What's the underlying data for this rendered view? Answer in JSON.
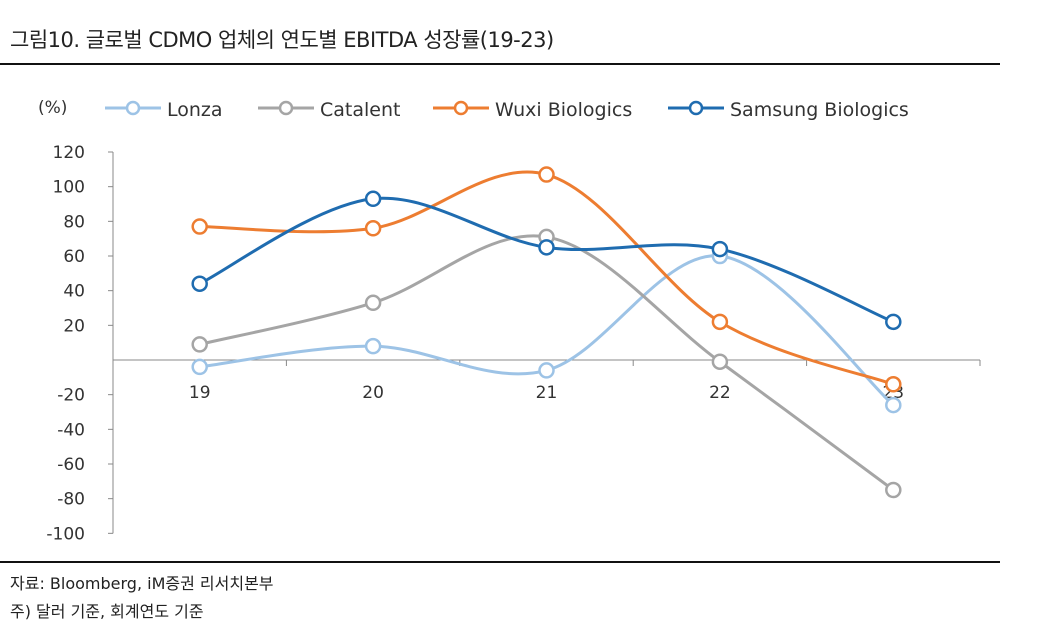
{
  "title": "그림10. 글로벌 CDMO 업체의 연도별 EBITDA 성장률(19-23)",
  "notes": [
    "자료: Bloomberg, iM증권 리서치본부",
    "주) 달러 기준, 회계연도 기준"
  ],
  "chart_data": {
    "type": "line",
    "title": "",
    "ylabel": "(%)",
    "xlabel": "",
    "categories": [
      "19",
      "20",
      "21",
      "22",
      "23"
    ],
    "ylim": [
      -100,
      120
    ],
    "yticks": [
      120,
      100,
      80,
      60,
      40,
      20,
      "",
      -20,
      -40,
      -60,
      -80,
      -100
    ],
    "grid": false,
    "legend": "top",
    "smooth": true,
    "series": [
      {
        "name": "Lonza",
        "color": "#9DC3E6",
        "values": [
          -4,
          8,
          -6,
          60,
          -26
        ]
      },
      {
        "name": "Catalent",
        "color": "#A5A5A5",
        "values": [
          9,
          33,
          71,
          -1,
          -75
        ]
      },
      {
        "name": "Wuxi Biologics",
        "color": "#ED7D31",
        "values": [
          77,
          76,
          107,
          22,
          -14
        ]
      },
      {
        "name": "Samsung Biologics",
        "color": "#1F6CB0",
        "values": [
          44,
          93,
          65,
          64,
          22
        ]
      }
    ]
  }
}
